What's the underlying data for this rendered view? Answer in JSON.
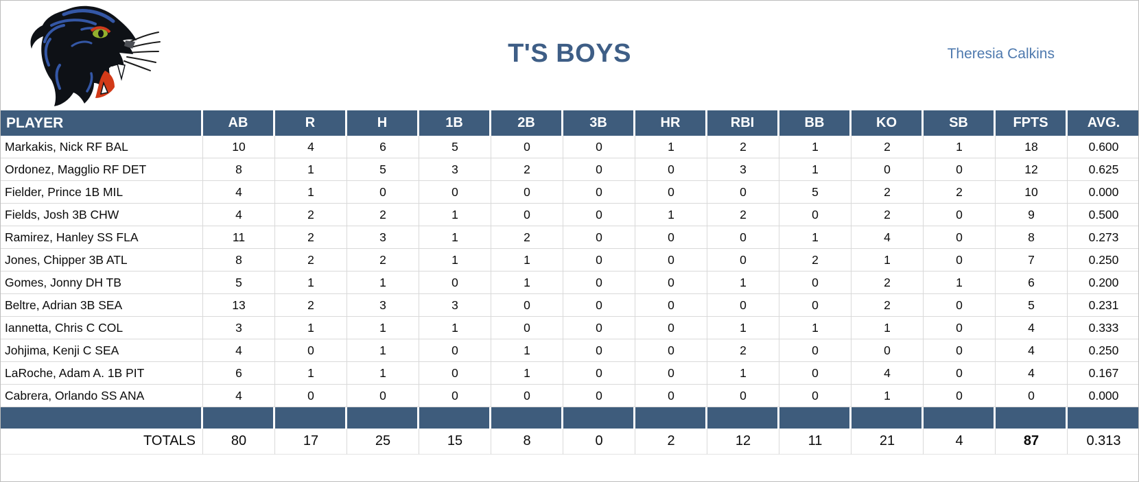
{
  "header": {
    "title": "T'S BOYS",
    "owner": "Theresia Calkins"
  },
  "colors": {
    "header_bg": "#3E5C7C",
    "title_text": "#3E5E86",
    "owner_text": "#4E79AE",
    "grid_line": "#D9D9D9",
    "logo_blue": "#3457A6",
    "logo_eye_green": "#93B02E",
    "logo_tongue_red": "#D23A18"
  },
  "icons": {
    "logo": "panther-logo"
  },
  "table": {
    "columns": [
      "PLAYER",
      "AB",
      "R",
      "H",
      "1B",
      "2B",
      "3B",
      "HR",
      "RBI",
      "BB",
      "KO",
      "SB",
      "FPTS",
      "AVG."
    ],
    "rows": [
      {
        "player": "Markakis, Nick RF BAL",
        "stats": [
          "10",
          "4",
          "6",
          "5",
          "0",
          "0",
          "1",
          "2",
          "1",
          "2",
          "1",
          "18",
          "0.600"
        ]
      },
      {
        "player": "Ordonez, Magglio RF DET",
        "stats": [
          "8",
          "1",
          "5",
          "3",
          "2",
          "0",
          "0",
          "3",
          "1",
          "0",
          "0",
          "12",
          "0.625"
        ]
      },
      {
        "player": "Fielder, Prince 1B MIL",
        "stats": [
          "4",
          "1",
          "0",
          "0",
          "0",
          "0",
          "0",
          "0",
          "5",
          "2",
          "2",
          "10",
          "0.000"
        ]
      },
      {
        "player": "Fields, Josh 3B CHW",
        "stats": [
          "4",
          "2",
          "2",
          "1",
          "0",
          "0",
          "1",
          "2",
          "0",
          "2",
          "0",
          "9",
          "0.500"
        ]
      },
      {
        "player": "Ramirez, Hanley SS FLA",
        "stats": [
          "11",
          "2",
          "3",
          "1",
          "2",
          "0",
          "0",
          "0",
          "1",
          "4",
          "0",
          "8",
          "0.273"
        ]
      },
      {
        "player": "Jones, Chipper 3B ATL",
        "stats": [
          "8",
          "2",
          "2",
          "1",
          "1",
          "0",
          "0",
          "0",
          "2",
          "1",
          "0",
          "7",
          "0.250"
        ]
      },
      {
        "player": "Gomes, Jonny DH TB",
        "stats": [
          "5",
          "1",
          "1",
          "0",
          "1",
          "0",
          "0",
          "1",
          "0",
          "2",
          "1",
          "6",
          "0.200"
        ]
      },
      {
        "player": "Beltre, Adrian 3B SEA",
        "stats": [
          "13",
          "2",
          "3",
          "3",
          "0",
          "0",
          "0",
          "0",
          "0",
          "2",
          "0",
          "5",
          "0.231"
        ]
      },
      {
        "player": "Iannetta, Chris C COL",
        "stats": [
          "3",
          "1",
          "1",
          "1",
          "0",
          "0",
          "0",
          "1",
          "1",
          "1",
          "0",
          "4",
          "0.333"
        ]
      },
      {
        "player": "Johjima, Kenji C SEA",
        "stats": [
          "4",
          "0",
          "1",
          "0",
          "1",
          "0",
          "0",
          "2",
          "0",
          "0",
          "0",
          "4",
          "0.250"
        ]
      },
      {
        "player": "LaRoche, Adam A. 1B PIT",
        "stats": [
          "6",
          "1",
          "1",
          "0",
          "1",
          "0",
          "0",
          "1",
          "0",
          "4",
          "0",
          "4",
          "0.167"
        ]
      },
      {
        "player": "Cabrera, Orlando SS ANA",
        "stats": [
          "4",
          "0",
          "0",
          "0",
          "0",
          "0",
          "0",
          "0",
          "0",
          "1",
          "0",
          "0",
          "0.000"
        ]
      }
    ],
    "totals": {
      "label": "TOTALS",
      "values": [
        "80",
        "17",
        "25",
        "15",
        "8",
        "0",
        "2",
        "12",
        "11",
        "21",
        "4",
        "87",
        "0.313"
      ],
      "bold_column": "FPTS"
    }
  }
}
